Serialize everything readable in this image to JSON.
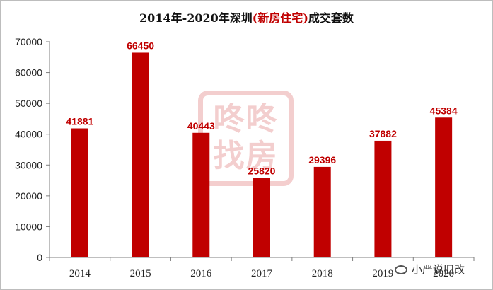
{
  "title": {
    "prefix": "2014年-2020年深圳",
    "highlight": "(新房住宅)",
    "suffix": "成交套数"
  },
  "watermark": {
    "line1": "咚咚",
    "line2": "找房"
  },
  "credit": {
    "text": "小严说旧改"
  },
  "colors": {
    "bar": "#c00000",
    "label": "#c00000",
    "axis": "#7f7f7f"
  },
  "chart_data": {
    "type": "bar",
    "title": "2014年-2020年深圳(新房住宅)成交套数",
    "categories": [
      "2014",
      "2015",
      "2016",
      "2017",
      "2018",
      "2019",
      "2020"
    ],
    "values": [
      41881,
      66450,
      40443,
      25820,
      29396,
      37882,
      45384
    ],
    "yticks": [
      0,
      10000,
      20000,
      30000,
      40000,
      50000,
      60000,
      70000
    ],
    "ylim": [
      0,
      70000
    ],
    "grid": false,
    "legend": "none"
  }
}
